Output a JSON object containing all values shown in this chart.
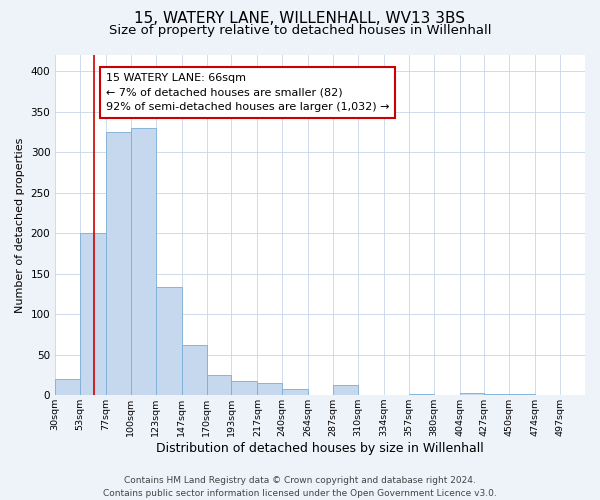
{
  "title": "15, WATERY LANE, WILLENHALL, WV13 3BS",
  "subtitle": "Size of property relative to detached houses in Willenhall",
  "xlabel": "Distribution of detached houses by size in Willenhall",
  "ylabel": "Number of detached properties",
  "bin_labels": [
    "30sqm",
    "53sqm",
    "77sqm",
    "100sqm",
    "123sqm",
    "147sqm",
    "170sqm",
    "193sqm",
    "217sqm",
    "240sqm",
    "264sqm",
    "287sqm",
    "310sqm",
    "334sqm",
    "357sqm",
    "380sqm",
    "404sqm",
    "427sqm",
    "450sqm",
    "474sqm",
    "497sqm"
  ],
  "bin_edges": [
    30,
    53,
    77,
    100,
    123,
    147,
    170,
    193,
    217,
    240,
    264,
    287,
    310,
    334,
    357,
    380,
    404,
    427,
    450,
    474,
    497
  ],
  "bar_heights": [
    20,
    200,
    325,
    330,
    133,
    62,
    25,
    17,
    15,
    7,
    0,
    12,
    0,
    0,
    2,
    0,
    3,
    2,
    2,
    0
  ],
  "bar_color": "#c5d8ee",
  "bar_edge_color": "#7aadd4",
  "property_size": 66,
  "property_line_color": "#cc0000",
  "annotation_text": "15 WATERY LANE: 66sqm\n← 7% of detached houses are smaller (82)\n92% of semi-detached houses are larger (1,032) →",
  "annotation_box_color": "#ffffff",
  "annotation_box_edge_color": "#cc0000",
  "ylim": [
    0,
    420
  ],
  "yticks": [
    0,
    50,
    100,
    150,
    200,
    250,
    300,
    350,
    400
  ],
  "footnote": "Contains HM Land Registry data © Crown copyright and database right 2024.\nContains public sector information licensed under the Open Government Licence v3.0.",
  "bg_color": "#eef2f9",
  "plot_bg_color": "#ffffff",
  "grid_color": "#c8d4e8",
  "title_fontsize": 11,
  "subtitle_fontsize": 9.5,
  "xlabel_fontsize": 9,
  "ylabel_fontsize": 8,
  "footnote_fontsize": 6.5,
  "annot_fontsize": 8
}
